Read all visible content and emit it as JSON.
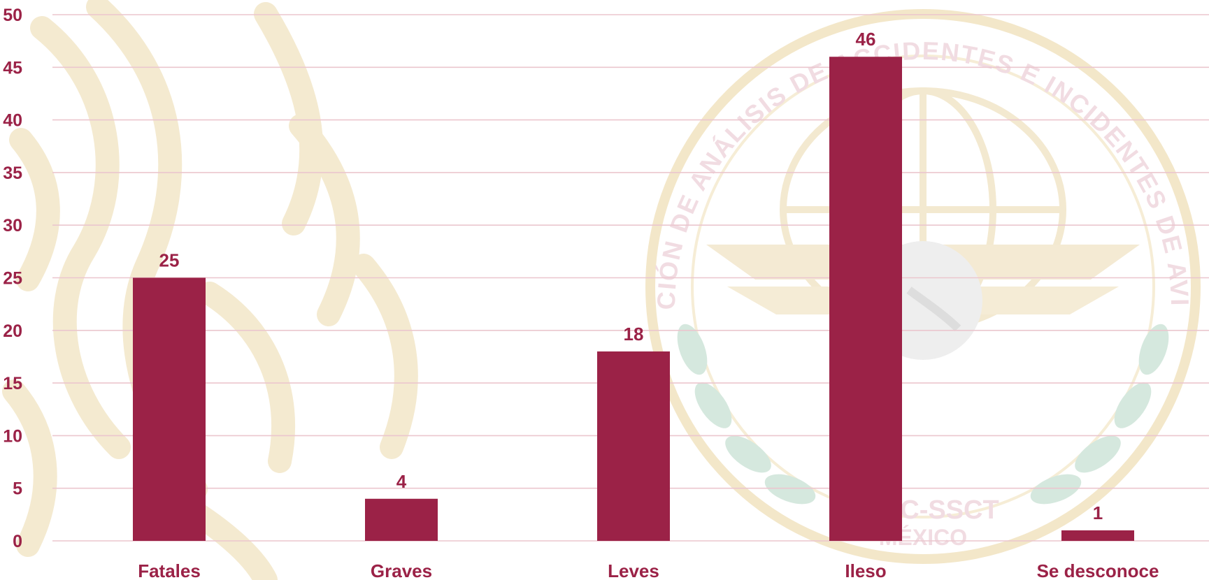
{
  "watermark": {
    "seal_text": "DIRECCIÓN DE ANÁLISIS DE ACCIDENTES E INCIDENTES DE AVIACIÓN",
    "seal_sub1": "AFAC-SSCT",
    "seal_sub2": "MÉXICO"
  },
  "colors": {
    "bar": "#9B2247",
    "label": "#9B2247",
    "grid": "#EBC6CE",
    "watermark_gold": "#F3E7C9",
    "watermark_green": "#D2E6DC"
  },
  "chart_data": {
    "type": "bar",
    "categories": [
      "Fatales",
      "Graves",
      "Leves",
      "Ileso",
      "Se desconoce"
    ],
    "values": [
      25,
      4,
      18,
      46,
      1
    ],
    "value_labels": [
      "25",
      "4",
      "18",
      "46",
      "1"
    ],
    "title": "",
    "xlabel": "",
    "ylabel": "",
    "ylim": [
      0,
      50
    ],
    "yticks": [
      "0",
      "5",
      "10",
      "15",
      "20",
      "25",
      "30",
      "35",
      "40",
      "45",
      "50"
    ],
    "grid": true,
    "legend": "none"
  }
}
